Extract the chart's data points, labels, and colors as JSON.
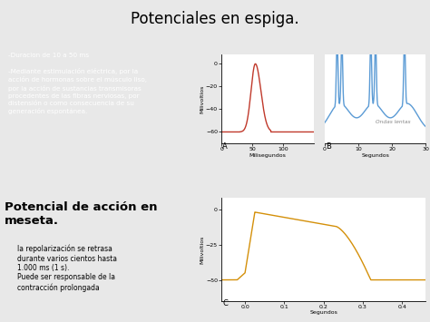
{
  "title": "Potenciales en espiga.",
  "bg_color": "#f0f0f0",
  "orange_color": "#E07030",
  "blue_header_color": "#8FBBE0",
  "text_left_orange": "-Duracion de 10 a 50 ms\n\n-Mediante estimulación eléctrica, por la\nacción de hormonas sobre el músculo liso,\npor la acción de sustancias transmisoras\nprocedentes de las fibras nerviosas, por\ndistensión o como consecuencia de su\ngeneración espontánea.",
  "subtitle": "Potencial de acción en\nmeseta.",
  "text_bottom": "la repolarización se retrasa\ndurante varios cientos hasta\n1.000 ms (1 s).\nPuede ser responsable de la\ncontracción prolongada",
  "plot_A_color": "#C0392B",
  "plot_B_color": "#5B9BD5",
  "plot_C_color": "#D4900A",
  "label_A": "A",
  "label_B": "B",
  "label_C": "C",
  "xlabel_A": "Milisegundos",
  "xlabel_B": "Segundos",
  "xlabel_C": "Segundos",
  "ylabel_ABC": "Milivoltios",
  "label_ondas": "Ondas lentas"
}
